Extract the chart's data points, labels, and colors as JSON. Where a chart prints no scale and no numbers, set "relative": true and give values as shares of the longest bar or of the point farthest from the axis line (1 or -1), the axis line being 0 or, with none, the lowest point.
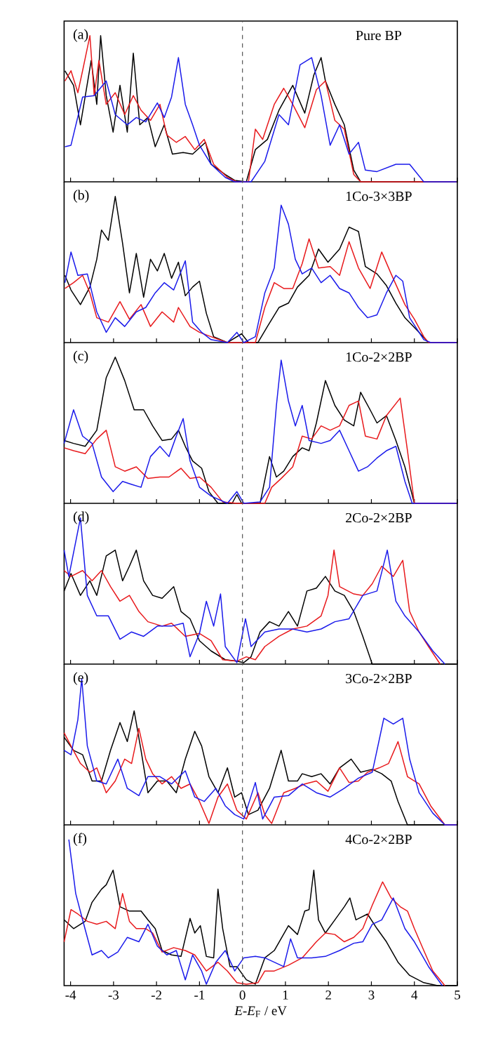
{
  "chart_data": [
    {
      "type": "line",
      "title": "Pure BP",
      "annotations": [
        "(a)"
      ],
      "relative": true,
      "xlim": [
        -4.15,
        5
      ],
      "xticks": [
        -4,
        -3,
        -2,
        -1,
        0,
        1,
        2,
        3,
        4,
        5
      ],
      "tick_labels": false,
      "line_style": "solid",
      "ref_lines": [
        {
          "axis": "x",
          "value": 0,
          "line_style": "dashed",
          "color": "#555555"
        }
      ],
      "series": [
        {
          "color": "#000000",
          "x": [
            -4.13,
            -3.93,
            -3.77,
            -3.52,
            -3.39,
            -3.3,
            -3.17,
            -3.01,
            -2.85,
            -2.68,
            -2.54,
            -2.39,
            -2.2,
            -2.03,
            -1.82,
            -1.63,
            -1.38,
            -1.16,
            -0.86,
            -0.73,
            -0.4,
            -0.18,
            0.09,
            0.3,
            0.58,
            0.85,
            1.17,
            1.45,
            1.66,
            1.83,
            1.93,
            2.15,
            2.37,
            2.59,
            2.75,
            4.98
          ],
          "values": [
            0.76,
            0.66,
            0.39,
            0.83,
            0.53,
            1,
            0.59,
            0.34,
            0.66,
            0.34,
            0.88,
            0.39,
            0.44,
            0.24,
            0.39,
            0.19,
            0.2,
            0.19,
            0.27,
            0.12,
            0.05,
            0.01,
            0,
            0.22,
            0.29,
            0.49,
            0.66,
            0.47,
            0.73,
            0.85,
            0.69,
            0.53,
            0.39,
            0.08,
            0,
            0
          ]
        },
        {
          "color": "#e8191c",
          "x": [
            -4.13,
            -3.99,
            -3.83,
            -3.72,
            -3.55,
            -3.45,
            -3.34,
            -3.17,
            -2.96,
            -2.74,
            -2.54,
            -2.36,
            -2.14,
            -1.92,
            -1.76,
            -1.54,
            -1.33,
            -1.11,
            -0.89,
            -0.67,
            -0.35,
            -0.13,
            0.14,
            0.3,
            0.47,
            0.74,
            0.96,
            1.17,
            1.45,
            1.72,
            1.93,
            2.15,
            2.37,
            2.59,
            2.75,
            4.98
          ],
          "values": [
            0.69,
            0.76,
            0.61,
            0.76,
            1,
            0.59,
            0.83,
            0.53,
            0.61,
            0.46,
            0.59,
            0.49,
            0.42,
            0.53,
            0.32,
            0.27,
            0.31,
            0.22,
            0.29,
            0.12,
            0.03,
            0,
            0,
            0.36,
            0.29,
            0.53,
            0.64,
            0.53,
            0.37,
            0.63,
            0.69,
            0.42,
            0.36,
            0.05,
            0,
            0
          ]
        },
        {
          "color": "#1a1aeb",
          "x": [
            -4.13,
            -3.99,
            -3.72,
            -3.45,
            -3.17,
            -2.96,
            -2.68,
            -2.47,
            -2.25,
            -1.98,
            -1.82,
            -1.65,
            -1.49,
            -1.33,
            -1.16,
            -1.0,
            -0.73,
            -0.4,
            -0.18,
            0.2,
            0.52,
            0.85,
            1.07,
            1.34,
            1.61,
            1.83,
            2.04,
            2.26,
            2.48,
            2.7,
            2.86,
            3.13,
            3.57,
            3.89,
            4.22,
            4.98
          ],
          "values": [
            0.24,
            0.25,
            0.58,
            0.59,
            0.69,
            0.46,
            0.39,
            0.44,
            0.41,
            0.54,
            0.44,
            0.58,
            0.85,
            0.53,
            0.39,
            0.25,
            0.12,
            0.03,
            0,
            0,
            0.14,
            0.46,
            0.39,
            0.8,
            0.85,
            0.59,
            0.25,
            0.39,
            0.19,
            0.27,
            0.08,
            0.07,
            0.12,
            0.12,
            0,
            0
          ]
        }
      ]
    },
    {
      "type": "line",
      "title": "1Co-3×3BP",
      "annotations": [
        "(b)"
      ],
      "relative": true,
      "xlim": [
        -4.15,
        5
      ],
      "xticks": [
        -4,
        -3,
        -2,
        -1,
        0,
        1,
        2,
        3,
        4,
        5
      ],
      "tick_labels": false,
      "line_style": "solid",
      "ref_lines": [
        {
          "axis": "x",
          "value": 0,
          "line_style": "dashed",
          "color": "#555555"
        }
      ],
      "series": [
        {
          "color": "#000000",
          "x": [
            -4.13,
            -3.99,
            -3.77,
            -3.55,
            -3.39,
            -3.28,
            -3.12,
            -2.96,
            -2.79,
            -2.63,
            -2.47,
            -2.3,
            -2.14,
            -1.98,
            -1.82,
            -1.65,
            -1.49,
            -1.33,
            -1.16,
            -1.0,
            -0.84,
            -0.67,
            -0.35,
            -0.02,
            0.14,
            0.36,
            0.58,
            0.85,
            1.07,
            1.28,
            1.55,
            1.77,
            1.99,
            2.26,
            2.48,
            2.7,
            2.86,
            3.13,
            3.35,
            3.57,
            3.78,
            4.11,
            4.33,
            4.98
          ],
          "values": [
            0.46,
            0.36,
            0.26,
            0.38,
            0.57,
            0.77,
            0.7,
            1,
            0.68,
            0.34,
            0.61,
            0.31,
            0.57,
            0.49,
            0.61,
            0.44,
            0.55,
            0.32,
            0.38,
            0.42,
            0.2,
            0.04,
            0,
            0.06,
            0,
            0,
            0.11,
            0.24,
            0.27,
            0.38,
            0.46,
            0.64,
            0.55,
            0.64,
            0.79,
            0.76,
            0.52,
            0.47,
            0.39,
            0.27,
            0.17,
            0.07,
            0,
            0
          ]
        },
        {
          "color": "#e8191c",
          "x": [
            -4.13,
            -3.93,
            -3.72,
            -3.55,
            -3.39,
            -3.12,
            -2.85,
            -2.63,
            -2.36,
            -2.14,
            -1.87,
            -1.6,
            -1.49,
            -1.22,
            -1.0,
            -0.73,
            -0.35,
            0.3,
            0.52,
            0.74,
            0.96,
            1.17,
            1.39,
            1.55,
            1.77,
            2.04,
            2.26,
            2.48,
            2.7,
            2.97,
            3.24,
            3.46,
            3.78,
            4.0,
            4.22,
            4.33,
            4.98
          ],
          "values": [
            0.37,
            0.41,
            0.46,
            0.34,
            0.17,
            0.14,
            0.28,
            0.16,
            0.26,
            0.11,
            0.21,
            0.14,
            0.24,
            0.11,
            0.07,
            0.04,
            0,
            0,
            0.24,
            0.41,
            0.37,
            0.37,
            0.54,
            0.71,
            0.51,
            0.52,
            0.46,
            0.69,
            0.51,
            0.37,
            0.62,
            0.47,
            0.26,
            0.16,
            0.04,
            0,
            0
          ]
        },
        {
          "color": "#1a1aeb",
          "x": [
            -4.13,
            -3.99,
            -3.83,
            -3.61,
            -3.39,
            -3.17,
            -2.96,
            -2.74,
            -2.47,
            -2.25,
            -2.03,
            -1.82,
            -1.6,
            -1.33,
            -1.16,
            -0.95,
            -0.73,
            -0.35,
            -0.13,
            0.03,
            0.3,
            0.52,
            0.74,
            0.9,
            1.07,
            1.23,
            1.39,
            1.61,
            1.83,
            2.04,
            2.26,
            2.48,
            2.7,
            2.91,
            3.13,
            3.35,
            3.57,
            3.73,
            3.89,
            4.22,
            4.38,
            4.98
          ],
          "values": [
            0.41,
            0.62,
            0.46,
            0.47,
            0.21,
            0.07,
            0.17,
            0.11,
            0.21,
            0.24,
            0.34,
            0.41,
            0.36,
            0.56,
            0.14,
            0.07,
            0.02,
            0,
            0.07,
            0,
            0.04,
            0.34,
            0.51,
            0.94,
            0.81,
            0.57,
            0.47,
            0.51,
            0.41,
            0.46,
            0.37,
            0.34,
            0.24,
            0.17,
            0.19,
            0.34,
            0.46,
            0.42,
            0.17,
            0.02,
            0,
            0
          ]
        }
      ]
    },
    {
      "type": "line",
      "title": "1Co-2×2BP",
      "annotations": [
        "(c)"
      ],
      "relative": true,
      "xlim": [
        -4.15,
        5
      ],
      "xticks": [
        -4,
        -3,
        -2,
        -1,
        0,
        1,
        2,
        3,
        4,
        5
      ],
      "tick_labels": false,
      "line_style": "solid",
      "ref_lines": [
        {
          "axis": "x",
          "value": 0,
          "line_style": "dashed",
          "color": "#555555"
        }
      ],
      "series": [
        {
          "color": "#000000",
          "x": [
            -4.15,
            -3.93,
            -3.66,
            -3.39,
            -3.17,
            -2.96,
            -2.74,
            -2.52,
            -2.3,
            -2.09,
            -1.87,
            -1.65,
            -1.49,
            -1.33,
            -1.16,
            -0.95,
            -0.78,
            -0.57,
            -0.24,
            -0.13,
            -0.02,
            0.41,
            0.63,
            0.79,
            0.96,
            1.17,
            1.39,
            1.55,
            1.72,
            1.93,
            2.15,
            2.37,
            2.59,
            2.75,
            2.97,
            3.13,
            3.35,
            3.57,
            3.78,
            4.0,
            4.98
          ],
          "values": [
            0.43,
            0.41,
            0.39,
            0.5,
            0.86,
            1,
            0.84,
            0.64,
            0.64,
            0.53,
            0.43,
            0.44,
            0.5,
            0.39,
            0.29,
            0.24,
            0.08,
            0,
            0,
            0.06,
            0,
            0,
            0.32,
            0.18,
            0.22,
            0.32,
            0.38,
            0.36,
            0.55,
            0.84,
            0.67,
            0.57,
            0.53,
            0.76,
            0.64,
            0.55,
            0.6,
            0.43,
            0.25,
            0,
            0
          ]
        },
        {
          "color": "#e8191c",
          "x": [
            -4.15,
            -3.93,
            -3.66,
            -3.39,
            -3.17,
            -2.96,
            -2.74,
            -2.47,
            -2.2,
            -1.92,
            -1.71,
            -1.43,
            -1.22,
            -1.0,
            -0.73,
            -0.46,
            -0.13,
            0.52,
            0.68,
            0.9,
            1.17,
            1.39,
            1.61,
            1.83,
            2.04,
            2.26,
            2.48,
            2.7,
            2.86,
            3.13,
            3.35,
            3.67,
            3.84,
            4.0,
            4.98
          ],
          "values": [
            0.38,
            0.36,
            0.34,
            0.44,
            0.5,
            0.25,
            0.22,
            0.25,
            0.17,
            0.18,
            0.18,
            0.24,
            0.17,
            0.18,
            0.11,
            0.01,
            0,
            0,
            0.11,
            0.17,
            0.25,
            0.46,
            0.44,
            0.53,
            0.5,
            0.53,
            0.67,
            0.7,
            0.46,
            0.44,
            0.6,
            0.72,
            0.36,
            0,
            0
          ]
        },
        {
          "color": "#1a1aeb",
          "x": [
            -4.15,
            -3.93,
            -3.72,
            -3.5,
            -3.28,
            -3.01,
            -2.79,
            -2.58,
            -2.36,
            -2.14,
            -1.92,
            -1.71,
            -1.54,
            -1.38,
            -1.22,
            -1.0,
            -0.73,
            -0.35,
            -0.13,
            0.03,
            0.41,
            0.63,
            0.79,
            0.9,
            1.07,
            1.23,
            1.39,
            1.55,
            1.83,
            2.04,
            2.26,
            2.48,
            2.7,
            2.91,
            3.13,
            3.35,
            3.57,
            3.78,
            3.95,
            4.98
          ],
          "values": [
            0.41,
            0.64,
            0.46,
            0.41,
            0.18,
            0.08,
            0.15,
            0.13,
            0.11,
            0.32,
            0.39,
            0.32,
            0.46,
            0.58,
            0.29,
            0.11,
            0.05,
            0,
            0.08,
            0,
            0.01,
            0.11,
            0.67,
            0.98,
            0.7,
            0.53,
            0.67,
            0.43,
            0.41,
            0.43,
            0.5,
            0.36,
            0.22,
            0.25,
            0.31,
            0.36,
            0.39,
            0.15,
            0,
            0
          ]
        }
      ]
    },
    {
      "type": "line",
      "title": "2Co-2×2BP",
      "annotations": [
        "(d)"
      ],
      "relative": true,
      "xlim": [
        -4.15,
        5
      ],
      "xticks": [
        -4,
        -3,
        -2,
        -1,
        0,
        1,
        2,
        3,
        4,
        5
      ],
      "tick_labels": false,
      "line_style": "solid",
      "ref_lines": [
        {
          "axis": "x",
          "value": 0,
          "line_style": "dashed",
          "color": "#555555"
        }
      ],
      "series": [
        {
          "color": "#000000",
          "x": [
            -4.15,
            -3.99,
            -3.77,
            -3.55,
            -3.39,
            -3.17,
            -2.96,
            -2.79,
            -2.63,
            -2.47,
            -2.3,
            -2.09,
            -1.87,
            -1.6,
            -1.43,
            -1.22,
            -1.0,
            -0.73,
            -0.4,
            -0.13,
            0.03,
            0.2,
            0.41,
            0.63,
            0.85,
            1.07,
            1.28,
            1.5,
            1.72,
            1.93,
            2.15,
            2.37,
            2.59,
            2.8,
            3.02,
            4.98
          ],
          "values": [
            0.5,
            0.62,
            0.47,
            0.57,
            0.47,
            0.74,
            0.78,
            0.57,
            0.67,
            0.78,
            0.57,
            0.47,
            0.45,
            0.53,
            0.36,
            0.31,
            0.16,
            0.09,
            0.03,
            0.02,
            0.01,
            0.05,
            0.22,
            0.29,
            0.26,
            0.36,
            0.26,
            0.5,
            0.52,
            0.6,
            0.5,
            0.47,
            0.36,
            0.19,
            0,
            0
          ]
        },
        {
          "color": "#e8191c",
          "x": [
            -4.15,
            -3.99,
            -3.72,
            -3.5,
            -3.28,
            -3.07,
            -2.85,
            -2.63,
            -2.41,
            -2.2,
            -1.87,
            -1.65,
            -1.33,
            -1.0,
            -0.73,
            -0.46,
            -0.13,
            0.09,
            0.3,
            0.52,
            0.85,
            1.17,
            1.5,
            1.83,
            1.99,
            2.13,
            2.26,
            2.59,
            2.8,
            3.02,
            3.24,
            3.51,
            3.73,
            3.89,
            4.11,
            4.33,
            4.6
          ],
          "values": [
            0.64,
            0.6,
            0.64,
            0.57,
            0.64,
            0.53,
            0.43,
            0.47,
            0.36,
            0.29,
            0.26,
            0.28,
            0.19,
            0.21,
            0.16,
            0.03,
            0.02,
            0.05,
            0.03,
            0.12,
            0.19,
            0.24,
            0.26,
            0.33,
            0.47,
            0.78,
            0.53,
            0.48,
            0.47,
            0.55,
            0.67,
            0.6,
            0.71,
            0.36,
            0.22,
            0.12,
            0
          ]
        },
        {
          "color": "#1a1aeb",
          "x": [
            -4.15,
            -4.04,
            -3.77,
            -3.61,
            -3.39,
            -3.12,
            -2.85,
            -2.58,
            -2.3,
            -1.98,
            -1.65,
            -1.38,
            -1.22,
            -1.0,
            -0.84,
            -0.67,
            -0.51,
            -0.4,
            -0.13,
            0.07,
            0.2,
            0.52,
            0.85,
            1.17,
            1.5,
            1.83,
            2.15,
            2.48,
            2.8,
            3.13,
            3.37,
            3.57,
            3.78,
            4.11,
            4.43,
            4.71
          ],
          "values": [
            0.78,
            0.6,
            1,
            0.47,
            0.33,
            0.33,
            0.17,
            0.22,
            0.19,
            0.26,
            0.26,
            0.28,
            0.05,
            0.21,
            0.43,
            0.26,
            0.48,
            0.12,
            0.01,
            0.31,
            0.12,
            0.22,
            0.24,
            0.24,
            0.22,
            0.24,
            0.29,
            0.31,
            0.47,
            0.5,
            0.78,
            0.43,
            0.33,
            0.22,
            0.09,
            0
          ]
        }
      ]
    },
    {
      "type": "line",
      "title": "3Co-2×2BP",
      "annotations": [
        "(e)"
      ],
      "relative": true,
      "xlim": [
        -4.15,
        5
      ],
      "xticks": [
        -4,
        -3,
        -2,
        -1,
        0,
        1,
        2,
        3,
        4,
        5
      ],
      "tick_labels": false,
      "line_style": "solid",
      "ref_lines": [
        {
          "axis": "x",
          "value": 0,
          "line_style": "dashed",
          "color": "#555555"
        }
      ],
      "series": [
        {
          "color": "#000000",
          "x": [
            -4.15,
            -3.93,
            -3.72,
            -3.5,
            -3.28,
            -3.07,
            -2.85,
            -2.68,
            -2.52,
            -2.36,
            -2.2,
            -1.98,
            -1.76,
            -1.54,
            -1.33,
            -1.11,
            -0.95,
            -0.78,
            -0.57,
            -0.35,
            -0.18,
            -0.02,
            0.14,
            0.36,
            0.63,
            0.9,
            1.07,
            1.28,
            1.39,
            1.61,
            1.83,
            2.04,
            2.26,
            2.53,
            2.75,
            3.02,
            3.24,
            3.46,
            3.62,
            3.84,
            4.98
          ],
          "values": [
            0.6,
            0.51,
            0.48,
            0.3,
            0.3,
            0.51,
            0.7,
            0.57,
            0.78,
            0.51,
            0.22,
            0.3,
            0.3,
            0.22,
            0.45,
            0.64,
            0.54,
            0.33,
            0.22,
            0.39,
            0.19,
            0.22,
            0.07,
            0.1,
            0.25,
            0.51,
            0.3,
            0.3,
            0.35,
            0.33,
            0.35,
            0.28,
            0.39,
            0.45,
            0.36,
            0.38,
            0.35,
            0.3,
            0.16,
            0,
            0
          ]
        },
        {
          "color": "#e8191c",
          "x": [
            -4.15,
            -3.99,
            -3.77,
            -3.55,
            -3.39,
            -3.17,
            -2.96,
            -2.74,
            -2.58,
            -2.41,
            -2.25,
            -2.09,
            -1.87,
            -1.65,
            -1.43,
            -1.22,
            -1.0,
            -0.78,
            -0.57,
            -0.35,
            -0.13,
            0.09,
            0.36,
            0.52,
            0.68,
            0.96,
            1.23,
            1.45,
            1.72,
            1.99,
            2.26,
            2.48,
            2.7,
            2.91,
            3.18,
            3.4,
            3.62,
            3.84,
            4.11,
            4.38,
            4.71,
            4.98
          ],
          "values": [
            0.63,
            0.54,
            0.42,
            0.36,
            0.39,
            0.22,
            0.3,
            0.45,
            0.42,
            0.66,
            0.45,
            0.35,
            0.28,
            0.33,
            0.25,
            0.28,
            0.16,
            0.01,
            0.19,
            0.28,
            0.1,
            0.04,
            0.22,
            0.07,
            0.01,
            0.22,
            0.25,
            0.28,
            0.3,
            0.23,
            0.39,
            0.29,
            0.3,
            0.36,
            0.39,
            0.42,
            0.57,
            0.33,
            0.28,
            0.13,
            0,
            0
          ]
        },
        {
          "color": "#1a1aeb",
          "x": [
            -4.15,
            -3.99,
            -3.83,
            -3.74,
            -3.61,
            -3.39,
            -3.17,
            -2.9,
            -2.68,
            -2.41,
            -2.2,
            -1.92,
            -1.65,
            -1.33,
            -1.11,
            -0.89,
            -0.62,
            -0.4,
            -0.18,
            0.03,
            0.3,
            0.47,
            0.74,
            1.07,
            1.39,
            1.72,
            2.04,
            2.37,
            2.7,
            3.02,
            3.13,
            3.29,
            3.51,
            3.73,
            3.89,
            4.11,
            4.43,
            4.71,
            4.98
          ],
          "values": [
            0.51,
            0.48,
            0.72,
            1,
            0.54,
            0.3,
            0.28,
            0.45,
            0.25,
            0.2,
            0.33,
            0.33,
            0.28,
            0.37,
            0.19,
            0.16,
            0.25,
            0.13,
            0.07,
            0.04,
            0.29,
            0.04,
            0.19,
            0.2,
            0.28,
            0.22,
            0.19,
            0.25,
            0.32,
            0.36,
            0.51,
            0.73,
            0.69,
            0.73,
            0.45,
            0.22,
            0.08,
            0,
            0
          ]
        }
      ]
    },
    {
      "type": "line",
      "title": "4Co-2×2BP",
      "annotations": [
        "(f)"
      ],
      "xlabel": "*E*-*E*$_{F}$ / eV",
      "relative": true,
      "xlim": [
        -4.15,
        5
      ],
      "xticks": [
        -4,
        -3,
        -2,
        -1,
        0,
        1,
        2,
        3,
        4,
        5
      ],
      "tick_labels": "x",
      "line_style": "solid",
      "ref_lines": [
        {
          "axis": "x",
          "value": 0,
          "line_style": "dashed",
          "color": "#555555"
        }
      ],
      "series": [
        {
          "color": "#000000",
          "x": [
            -4.15,
            -3.93,
            -3.66,
            -3.5,
            -3.28,
            -3.17,
            -3.01,
            -2.85,
            -2.63,
            -2.36,
            -2.2,
            -2.03,
            -1.87,
            -1.65,
            -1.43,
            -1.22,
            -1.11,
            -0.98,
            -0.84,
            -0.67,
            -0.57,
            -0.46,
            -0.29,
            -0.13,
            0.09,
            0.3,
            0.52,
            0.74,
            1.07,
            1.28,
            1.45,
            1.55,
            1.66,
            1.77,
            1.93,
            2.15,
            2.37,
            2.5,
            2.64,
            2.91,
            3.13,
            3.35,
            3.62,
            3.89,
            4.22,
            4.54,
            4.98
          ],
          "values": [
            0.45,
            0.39,
            0.44,
            0.57,
            0.66,
            0.69,
            0.79,
            0.54,
            0.51,
            0.51,
            0.45,
            0.39,
            0.24,
            0.21,
            0.2,
            0.46,
            0.36,
            0.41,
            0.2,
            0.19,
            0.66,
            0.39,
            0.13,
            0.13,
            0.04,
            0.01,
            0.19,
            0.24,
            0.41,
            0.35,
            0.51,
            0.52,
            0.79,
            0.45,
            0.36,
            0.45,
            0.54,
            0.6,
            0.45,
            0.49,
            0.39,
            0.3,
            0.16,
            0.07,
            0.02,
            0,
            0
          ]
        },
        {
          "color": "#e8191c",
          "x": [
            -4.15,
            -3.99,
            -3.83,
            -3.61,
            -3.39,
            -3.17,
            -2.96,
            -2.79,
            -2.63,
            -2.47,
            -2.25,
            -2.09,
            -1.87,
            -1.6,
            -1.33,
            -1.11,
            -0.84,
            -0.57,
            -0.35,
            -0.13,
            0.09,
            0.36,
            0.52,
            0.74,
            1.07,
            1.39,
            1.72,
            1.93,
            2.15,
            2.37,
            2.59,
            2.8,
            3.02,
            3.26,
            3.46,
            3.67,
            3.84,
            4.0,
            4.22,
            4.43,
            4.71
          ],
          "values": [
            0.3,
            0.52,
            0.49,
            0.44,
            0.42,
            0.44,
            0.39,
            0.63,
            0.44,
            0.39,
            0.39,
            0.36,
            0.23,
            0.26,
            0.24,
            0.21,
            0.1,
            0.16,
            0.1,
            0.02,
            0.01,
            0.02,
            0.1,
            0.1,
            0.14,
            0.19,
            0.3,
            0.36,
            0.35,
            0.3,
            0.33,
            0.39,
            0.55,
            0.71,
            0.6,
            0.54,
            0.51,
            0.39,
            0.24,
            0.1,
            0
          ]
        },
        {
          "color": "#1a1aeb",
          "x": [
            -4.04,
            -3.88,
            -3.72,
            -3.5,
            -3.28,
            -3.12,
            -2.9,
            -2.68,
            -2.41,
            -2.2,
            -1.98,
            -1.76,
            -1.54,
            -1.33,
            -1.16,
            -0.95,
            -0.84,
            -0.62,
            -0.4,
            -0.18,
            0.03,
            0.3,
            0.52,
            0.74,
            0.96,
            1.12,
            1.28,
            1.61,
            1.93,
            2.26,
            2.59,
            2.8,
            3.02,
            3.24,
            3.51,
            3.78,
            4.0,
            4.33,
            4.65
          ],
          "values": [
            1,
            0.63,
            0.45,
            0.21,
            0.24,
            0.19,
            0.23,
            0.33,
            0.3,
            0.42,
            0.27,
            0.21,
            0.24,
            0.04,
            0.21,
            0.1,
            0.01,
            0.16,
            0.24,
            0.1,
            0.19,
            0.2,
            0.19,
            0.16,
            0.13,
            0.32,
            0.19,
            0.19,
            0.2,
            0.24,
            0.29,
            0.3,
            0.42,
            0.45,
            0.6,
            0.39,
            0.3,
            0.13,
            0
          ]
        }
      ]
    }
  ]
}
